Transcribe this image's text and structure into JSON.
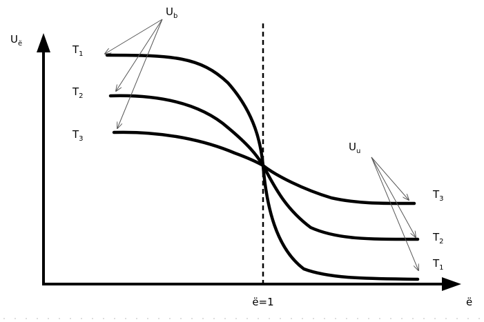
{
  "axes": {
    "y_label": {
      "main": "U",
      "sub": "ё"
    },
    "x_label": "ё",
    "marker_label": "ё=1"
  },
  "callouts": {
    "left": {
      "main": "U",
      "sub": "b"
    },
    "right": {
      "main": "U",
      "sub": "u"
    }
  },
  "curves": [
    {
      "left": {
        "main": "T",
        "sub": "1"
      },
      "right": {
        "main": "T",
        "sub": "1"
      }
    },
    {
      "left": {
        "main": "T",
        "sub": "2"
      },
      "right": {
        "main": "T",
        "sub": "2"
      }
    },
    {
      "left": {
        "main": "T",
        "sub": "3"
      },
      "right": {
        "main": "T",
        "sub": "3"
      }
    }
  ]
}
